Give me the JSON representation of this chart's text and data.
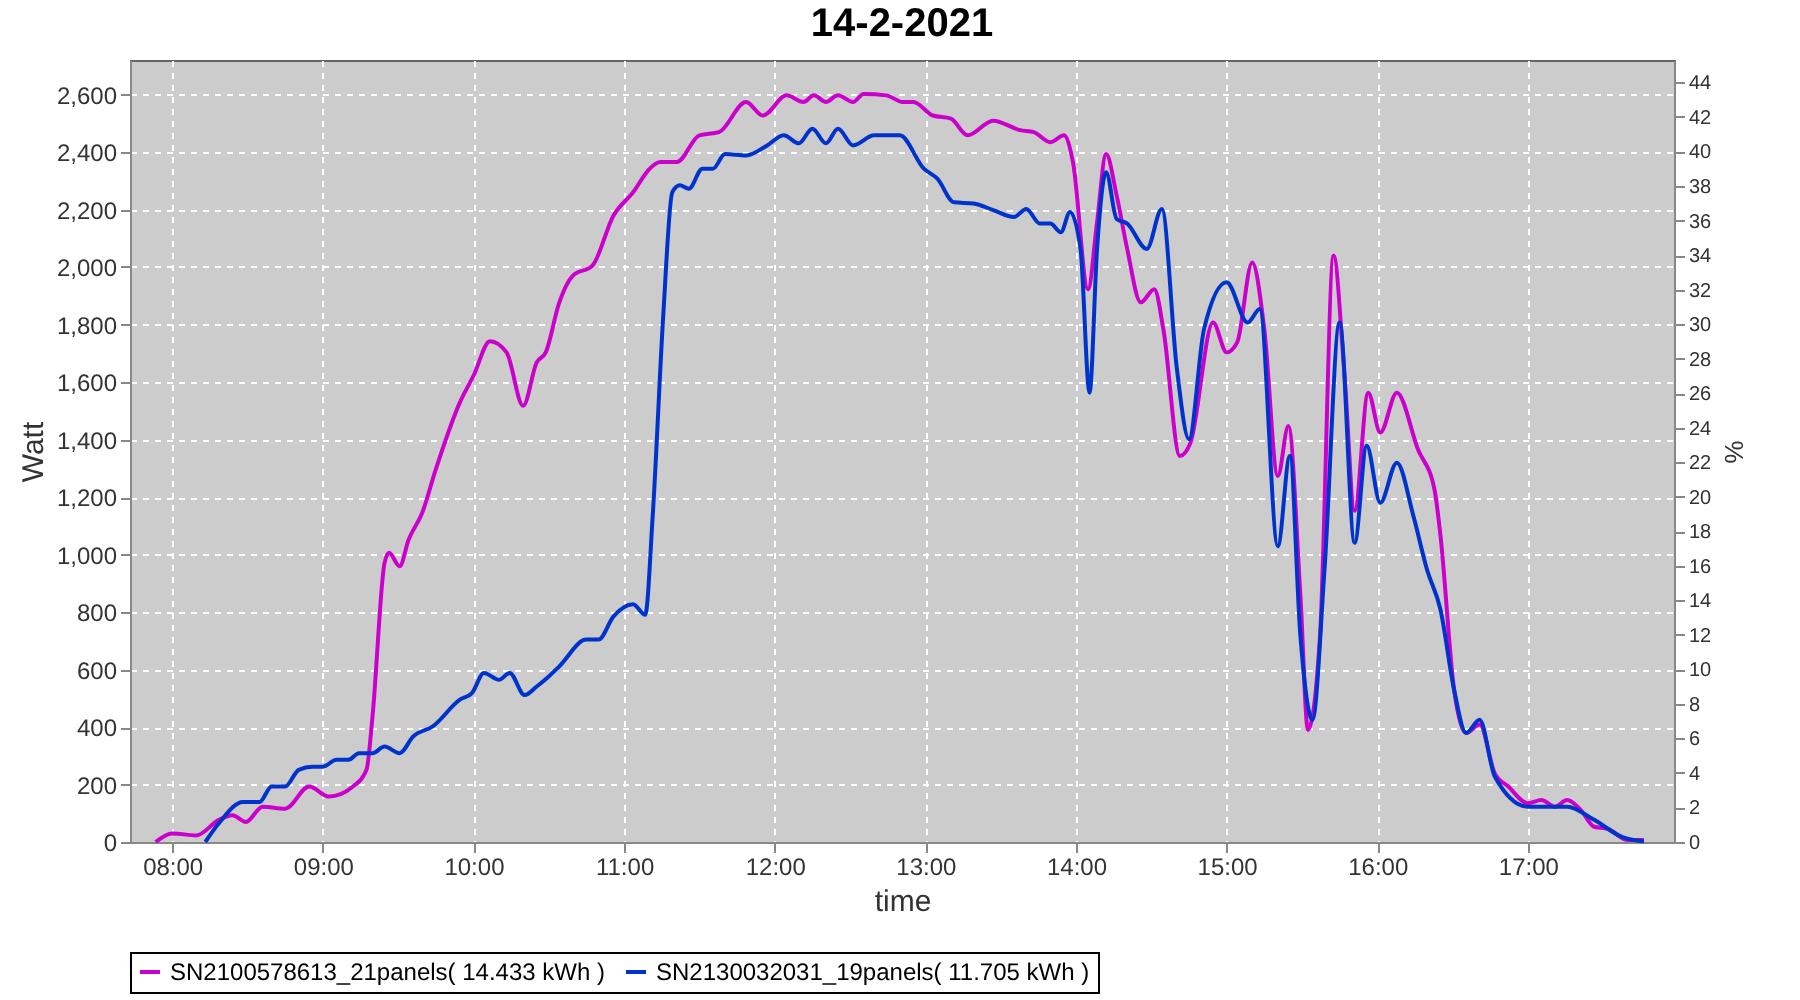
{
  "chart_data": {
    "type": "line",
    "title": "14-2-2021",
    "xlabel": "time",
    "ylabel": "Watt",
    "y2label": "%",
    "grid": true,
    "legend": "bottom",
    "xlim": [
      7.72,
      17.97
    ],
    "ylim": [
      0,
      2720
    ],
    "y2lim": [
      0,
      45.3
    ],
    "xticks": [
      {
        "value": 8,
        "label": "08:00"
      },
      {
        "value": 9,
        "label": "09:00"
      },
      {
        "value": 10,
        "label": "10:00"
      },
      {
        "value": 11,
        "label": "11:00"
      },
      {
        "value": 12,
        "label": "12:00"
      },
      {
        "value": 13,
        "label": "13:00"
      },
      {
        "value": 14,
        "label": "14:00"
      },
      {
        "value": 15,
        "label": "15:00"
      },
      {
        "value": 16,
        "label": "16:00"
      },
      {
        "value": 17,
        "label": "17:00"
      }
    ],
    "yticks": [
      0,
      200,
      400,
      600,
      800,
      {
        "value": 1000,
        "label": "1,000"
      },
      {
        "value": 1200,
        "label": "1,200"
      },
      {
        "value": 1400,
        "label": "1,400"
      },
      {
        "value": 1600,
        "label": "1,600"
      },
      {
        "value": 1800,
        "label": "1,800"
      },
      {
        "value": 2000,
        "label": "2,000"
      },
      {
        "value": 2200,
        "label": "2,200"
      },
      {
        "value": 2400,
        "label": "2,400"
      },
      {
        "value": 2600,
        "label": "2,600"
      }
    ],
    "y2ticks": [
      0,
      2,
      4,
      6,
      8,
      10,
      12,
      14,
      16,
      18,
      20,
      22,
      24,
      26,
      28,
      30,
      32,
      34,
      36,
      38,
      40,
      42,
      44
    ],
    "series": [
      {
        "name": "SN2100578613_21panels( 14.433 kWh )",
        "color": "#cc00cc",
        "x": [
          7.89,
          8.0,
          8.16,
          8.31,
          8.4,
          8.49,
          8.6,
          8.75,
          8.91,
          9.04,
          9.2,
          9.29,
          9.33,
          9.41,
          9.44,
          9.51,
          9.57,
          9.66,
          9.75,
          9.91,
          10.0,
          10.11,
          10.22,
          10.33,
          10.42,
          10.48,
          10.57,
          10.66,
          10.79,
          10.93,
          11.06,
          11.17,
          11.24,
          11.35,
          11.5,
          11.63,
          11.81,
          11.92,
          12.08,
          12.19,
          12.26,
          12.34,
          12.42,
          12.52,
          12.59,
          12.74,
          12.85,
          12.92,
          13.05,
          13.17,
          13.28,
          13.45,
          13.63,
          13.72,
          13.83,
          13.92,
          13.98,
          14.08,
          14.14,
          14.2,
          14.27,
          14.34,
          14.43,
          14.52,
          14.58,
          14.69,
          14.76,
          14.91,
          15.0,
          15.07,
          15.17,
          15.25,
          15.34,
          15.41,
          15.49,
          15.54,
          15.62,
          15.71,
          15.78,
          15.85,
          15.94,
          16.02,
          16.13,
          16.27,
          16.38,
          16.42,
          16.51,
          16.59,
          16.68,
          16.78,
          16.87,
          17.0,
          17.09,
          17.18,
          17.26,
          17.35,
          17.44,
          17.53,
          17.66,
          17.77
        ],
        "values": [
          0,
          30,
          23,
          77,
          93,
          70,
          123,
          116,
          193,
          158,
          193,
          251,
          437,
          971,
          1006,
          959,
          1052,
          1145,
          1296,
          1529,
          1621,
          1742,
          1703,
          1517,
          1668,
          1703,
          1877,
          1970,
          2005,
          2179,
          2260,
          2342,
          2365,
          2365,
          2458,
          2469,
          2574,
          2527,
          2597,
          2574,
          2597,
          2574,
          2597,
          2574,
          2602,
          2597,
          2574,
          2574,
          2527,
          2516,
          2458,
          2509,
          2476,
          2469,
          2434,
          2458,
          2365,
          1923,
          2156,
          2393,
          2249,
          2063,
          1877,
          1923,
          1784,
          1343,
          1389,
          1807,
          1703,
          1738,
          2016,
          1784,
          1273,
          1447,
          855,
          390,
          715,
          2040,
          1645,
          1152,
          1563,
          1424,
          1563,
          1366,
          1226,
          1064,
          530,
          379,
          409,
          239,
          193,
          135,
          146,
          123,
          146,
          112,
          53,
          46,
          7,
          7
        ]
      },
      {
        "name": "SN2130032031_19panels( 11.705 kWh )",
        "color": "#0033cc",
        "x": [
          8.22,
          8.31,
          8.47,
          8.58,
          8.66,
          8.75,
          8.84,
          8.93,
          9.0,
          9.09,
          9.17,
          9.24,
          9.33,
          9.41,
          9.51,
          9.6,
          9.73,
          9.91,
          9.99,
          10.07,
          10.17,
          10.24,
          10.34,
          10.42,
          10.5,
          10.57,
          10.75,
          10.83,
          10.93,
          11.06,
          11.14,
          11.19,
          11.26,
          11.32,
          11.37,
          11.43,
          11.52,
          11.59,
          11.67,
          11.81,
          11.95,
          12.06,
          12.16,
          12.25,
          12.34,
          12.42,
          12.52,
          12.66,
          12.83,
          12.99,
          13.08,
          13.19,
          13.32,
          13.45,
          13.59,
          13.67,
          13.76,
          13.83,
          13.9,
          13.96,
          14.03,
          14.09,
          14.14,
          14.2,
          14.27,
          14.34,
          14.47,
          14.57,
          14.67,
          14.75,
          14.85,
          15.0,
          15.14,
          15.22,
          15.34,
          15.42,
          15.49,
          15.57,
          15.65,
          15.75,
          15.85,
          15.93,
          16.02,
          16.13,
          16.24,
          16.33,
          16.42,
          16.51,
          16.59,
          16.68,
          16.78,
          17.0,
          17.26,
          17.44,
          17.62,
          17.77
        ],
        "values": [
          0,
          65,
          139,
          139,
          193,
          193,
          251,
          262,
          262,
          286,
          286,
          309,
          309,
          332,
          309,
          367,
          402,
          495,
          518,
          588,
          564,
          588,
          511,
          541,
          576,
          611,
          704,
          704,
          785,
          827,
          790,
          1134,
          1831,
          2260,
          2284,
          2272,
          2342,
          2342,
          2393,
          2388,
          2423,
          2458,
          2430,
          2481,
          2430,
          2481,
          2423,
          2458,
          2458,
          2342,
          2307,
          2225,
          2221,
          2198,
          2174,
          2202,
          2151,
          2151,
          2121,
          2191,
          2063,
          1563,
          2063,
          2330,
          2167,
          2151,
          2063,
          2202,
          1645,
          1401,
          1784,
          1947,
          1807,
          1854,
          1029,
          1343,
          715,
          425,
          948,
          1807,
          1041,
          1378,
          1180,
          1319,
          1134,
          948,
          808,
          530,
          379,
          425,
          228,
          123,
          123,
          77,
          19,
          2
        ]
      }
    ]
  }
}
